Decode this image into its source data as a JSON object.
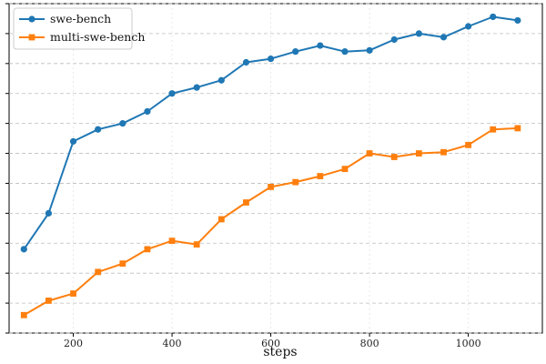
{
  "chart_data": {
    "type": "line",
    "title": "",
    "xlabel": "steps",
    "ylabel": "",
    "xlim": [
      70,
      1150
    ],
    "ylim": [
      45.5,
      48.25
    ],
    "xticks": [
      200,
      400,
      600,
      800,
      1000
    ],
    "grid": true,
    "legend_position": "top-left",
    "series": [
      {
        "name": "swe-bench",
        "color": "#1f77b4",
        "marker": "circle",
        "x": [
          100,
          150,
          200,
          250,
          300,
          350,
          400,
          450,
          500,
          550,
          600,
          650,
          700,
          750,
          800,
          850,
          900,
          950,
          1000,
          1050,
          1100
        ],
        "y": [
          46.2,
          46.5,
          47.1,
          47.2,
          47.25,
          47.35,
          47.5,
          47.55,
          47.61,
          47.76,
          47.79,
          47.85,
          47.9,
          47.85,
          47.86,
          47.95,
          48.0,
          47.97,
          48.06,
          48.14,
          48.11
        ]
      },
      {
        "name": "multi-swe-bench",
        "color": "#ff7f0e",
        "marker": "square",
        "x": [
          100,
          150,
          200,
          250,
          300,
          350,
          400,
          450,
          500,
          550,
          600,
          650,
          700,
          750,
          800,
          850,
          900,
          950,
          1000,
          1050,
          1100
        ],
        "y": [
          45.65,
          45.77,
          45.83,
          46.01,
          46.08,
          46.2,
          46.27,
          46.24,
          46.45,
          46.59,
          46.72,
          46.76,
          46.81,
          46.87,
          47.0,
          46.97,
          47.0,
          47.01,
          47.07,
          47.2,
          47.21
        ]
      }
    ]
  }
}
